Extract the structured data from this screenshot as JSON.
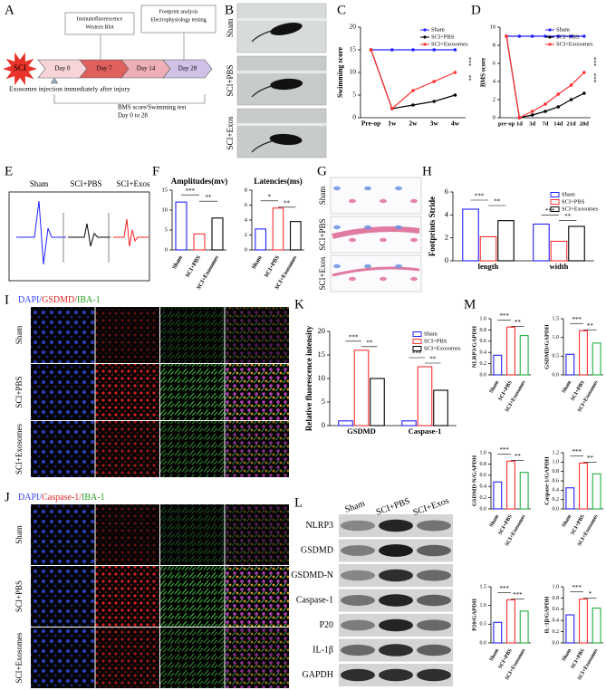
{
  "panel_labels": [
    "A",
    "B",
    "C",
    "D",
    "E",
    "F",
    "G",
    "H",
    "I",
    "J",
    "K",
    "L",
    "M"
  ],
  "timeline": {
    "start": "SCI",
    "steps": [
      "Day 0",
      "Day 7",
      "Day 14",
      "Day 28"
    ],
    "top_boxes": [
      [
        "Immunofluorescence",
        "Western Blot"
      ],
      [
        "Footprint analysis",
        "Electrophysiology testing"
      ]
    ],
    "injection": "Exosomes injection immediately after injury",
    "test": [
      "BMS score/Swimming test",
      "Day 0 to 28"
    ]
  },
  "swim_photos": {
    "rows": [
      "Sham",
      "SCI+PBS",
      "SCI+Exos"
    ]
  },
  "electrophysiology": {
    "groups": [
      "Sham",
      "SCI+PBS",
      "SCI+Exos"
    ]
  },
  "footprints": {
    "rows": [
      "Sham",
      "SCI+PBS",
      "SCI+Exos"
    ]
  },
  "immuno_gsdmd": {
    "stain": [
      "DAPI/",
      "GSDMD/",
      "IBA-1"
    ],
    "rows": [
      "Sham",
      "SCI+PBS",
      "SCI+Exosomes"
    ]
  },
  "immuno_caspase": {
    "stain": [
      "DAPI/",
      "Caspase-1/",
      "IBA-1"
    ],
    "rows": [
      "Sham",
      "SCI+PBS",
      "SCI+Exosomes"
    ]
  },
  "western_blot": {
    "columns": [
      "Sham",
      "SCI+PBS",
      "SCI+Exos"
    ],
    "rows": [
      "NLRP3",
      "GSDMD",
      "GSDMD-N",
      "Caspase-1",
      "P20",
      "IL-1β",
      "GAPDH"
    ]
  },
  "chart_data": [
    {
      "type": "line",
      "ylabel": "Swimming score",
      "categories": [
        "Pre-op",
        "1w",
        "2w",
        "3w",
        "4w"
      ],
      "series": [
        {
          "name": "Sham",
          "color": "#2020ff",
          "values": [
            15,
            15,
            15,
            15,
            15
          ]
        },
        {
          "name": "SCI+PBS",
          "color": "#000000",
          "values": [
            15,
            2,
            2.8,
            3.6,
            5
          ]
        },
        {
          "name": "SCI+Exosomes",
          "color": "#ff3030",
          "values": [
            15,
            2,
            6,
            8,
            10
          ]
        }
      ],
      "ylim": [
        0,
        20
      ],
      "yticks": [
        0,
        5,
        10,
        15,
        20
      ],
      "annotations": [
        "***",
        "**"
      ]
    },
    {
      "type": "line",
      "ylabel": "BMS score",
      "categories": [
        "pre-op",
        "1d",
        "3d",
        "7d",
        "14d",
        "21d",
        "28d"
      ],
      "series": [
        {
          "name": "Sham",
          "color": "#2020ff",
          "values": [
            9,
            9,
            9,
            9,
            9,
            9,
            9
          ]
        },
        {
          "name": "SCI+PBS",
          "color": "#000000",
          "values": [
            9,
            0,
            0.3,
            0.7,
            1.2,
            2,
            2.7
          ]
        },
        {
          "name": "SCI+Exosomes",
          "color": "#ff3030",
          "values": [
            9,
            0,
            0.7,
            1.5,
            2.6,
            3.6,
            5
          ]
        }
      ],
      "ylim": [
        0,
        10
      ],
      "yticks": [
        0,
        2,
        4,
        6,
        8,
        10
      ],
      "annotations": [
        "***",
        "***"
      ]
    },
    {
      "type": "bar",
      "title": "Amplitudes(mv)",
      "categories": [
        "Sham",
        "SCI+PBS",
        "SCI+Exosomes"
      ],
      "values": [
        12,
        4,
        8
      ],
      "colors": [
        "#2020ff",
        "#ff3030",
        "#000000"
      ],
      "ylim": [
        0,
        15
      ],
      "yticks": [
        0,
        5,
        10,
        15
      ],
      "annotations": [
        "***",
        "**"
      ]
    },
    {
      "type": "bar",
      "title": "Latencies(ms)",
      "categories": [
        "Sham",
        "SCI+PBS",
        "SCI+Exosomes"
      ],
      "values": [
        2.8,
        5.6,
        3.8
      ],
      "colors": [
        "#2020ff",
        "#ff3030",
        "#000000"
      ],
      "ylim": [
        0,
        8
      ],
      "yticks": [
        0,
        2,
        4,
        6,
        8
      ],
      "annotations": [
        "*",
        "**"
      ]
    },
    {
      "type": "bar",
      "ylabel": "Footprints Stride",
      "categories": [
        "length",
        "width"
      ],
      "series": [
        {
          "name": "Sham",
          "color": "#2020ff",
          "values": [
            4.5,
            3.2
          ]
        },
        {
          "name": "SCI+PBS",
          "color": "#ff3030",
          "values": [
            2.1,
            1.7
          ]
        },
        {
          "name": "SCI+Exosomes",
          "color": "#000000",
          "values": [
            3.5,
            3
          ]
        }
      ],
      "ylim": [
        0,
        6
      ],
      "yticks": [
        0,
        2,
        4,
        6
      ],
      "annotations": [
        "***",
        "**",
        "***",
        "**"
      ]
    },
    {
      "type": "bar",
      "ylabel": "Relative fluorescence intensity",
      "categories": [
        "GSDMD",
        "Caspase-1"
      ],
      "series": [
        {
          "name": "Sham",
          "color": "#2020ff",
          "values": [
            1,
            1
          ]
        },
        {
          "name": "SCI+PBS",
          "color": "#ff3030",
          "values": [
            16,
            12.5
          ]
        },
        {
          "name": "SCI+Exosomes",
          "color": "#000000",
          "values": [
            10,
            7.5
          ]
        }
      ],
      "ylim": [
        0,
        20
      ],
      "yticks": [
        0,
        5,
        10,
        15,
        20
      ],
      "annotations": [
        "***",
        "**",
        "***",
        "**"
      ]
    },
    {
      "type": "bar",
      "ylabel": "NLRP3/GAPDH",
      "categories": [
        "Sham",
        "SCI+PBS",
        "SCI+Exosomes"
      ],
      "values": [
        0.35,
        0.85,
        0.7
      ],
      "colors": [
        "#2020ff",
        "#ff3030",
        "#20b040"
      ],
      "ylim": [
        0,
        1
      ],
      "yticks": [
        {
          "value": 0,
          "label": "0.0"
        },
        0.2,
        0.4,
        0.6,
        0.8,
        {
          "value": 1,
          "label": "1.0"
        }
      ],
      "annotations": [
        "***",
        "**"
      ]
    },
    {
      "type": "bar",
      "ylabel": "GSDMD/GAPDH",
      "categories": [
        "Sham",
        "SCI+PBS",
        "SCI+Exosomes"
      ],
      "values": [
        0.55,
        1.18,
        0.85
      ],
      "colors": [
        "#2020ff",
        "#ff3030",
        "#20b040"
      ],
      "ylim": [
        0,
        1.5
      ],
      "yticks": [
        {
          "value": 0,
          "label": "0.0"
        },
        0.5,
        {
          "value": 1,
          "label": "1.0"
        },
        1.5
      ],
      "annotations": [
        "***",
        "**"
      ]
    },
    {
      "type": "bar",
      "ylabel": "GSDMD-N/GAPDH",
      "categories": [
        "Sham",
        "SCI+PBS",
        "SCI+Exosomes"
      ],
      "values": [
        0.48,
        0.85,
        0.65
      ],
      "colors": [
        "#2020ff",
        "#ff3030",
        "#20b040"
      ],
      "ylim": [
        0,
        1
      ],
      "yticks": [
        {
          "value": 0,
          "label": "0.0"
        },
        0.2,
        0.4,
        0.6,
        0.8,
        {
          "value": 1,
          "label": "1.0"
        }
      ],
      "annotations": [
        "***",
        "**"
      ]
    },
    {
      "type": "bar",
      "ylabel": "Caspase-1/GAPDH",
      "categories": [
        "Sham",
        "SCI+PBS",
        "SCI+Exosomes"
      ],
      "values": [
        0.45,
        0.98,
        0.75
      ],
      "colors": [
        "#2020ff",
        "#ff3030",
        "#20b040"
      ],
      "ylim": [
        0,
        1.2
      ],
      "yticks": [
        {
          "value": 0,
          "label": "0.0"
        },
        0.2,
        0.4,
        0.6,
        0.8,
        {
          "value": 1,
          "label": "1.0"
        },
        1.2
      ],
      "annotations": [
        "***",
        "**"
      ]
    },
    {
      "type": "bar",
      "ylabel": "P20/GAPDH",
      "categories": [
        "Sham",
        "SCI+PBS",
        "SCI+Exosomes"
      ],
      "values": [
        0.55,
        1.15,
        0.85
      ],
      "colors": [
        "#2020ff",
        "#ff3030",
        "#20b040"
      ],
      "ylim": [
        0,
        1.5
      ],
      "yticks": [
        {
          "value": 0,
          "label": "0.0"
        },
        0.5,
        {
          "value": 1,
          "label": "1.0"
        },
        1.5
      ],
      "annotations": [
        "***",
        "***"
      ]
    },
    {
      "type": "bar",
      "ylabel": "IL-1β/GAPDH",
      "categories": [
        "Sham",
        "SCI+PBS",
        "SCI+Exosomes"
      ],
      "values": [
        0.5,
        0.78,
        0.62
      ],
      "colors": [
        "#2020ff",
        "#ff3030",
        "#20b040"
      ],
      "ylim": [
        0,
        1
      ],
      "yticks": [
        {
          "value": 0,
          "label": "0.0"
        },
        0.2,
        0.4,
        0.6,
        0.8,
        {
          "value": 1,
          "label": "1.0"
        }
      ],
      "annotations": [
        "***",
        "*"
      ]
    }
  ]
}
